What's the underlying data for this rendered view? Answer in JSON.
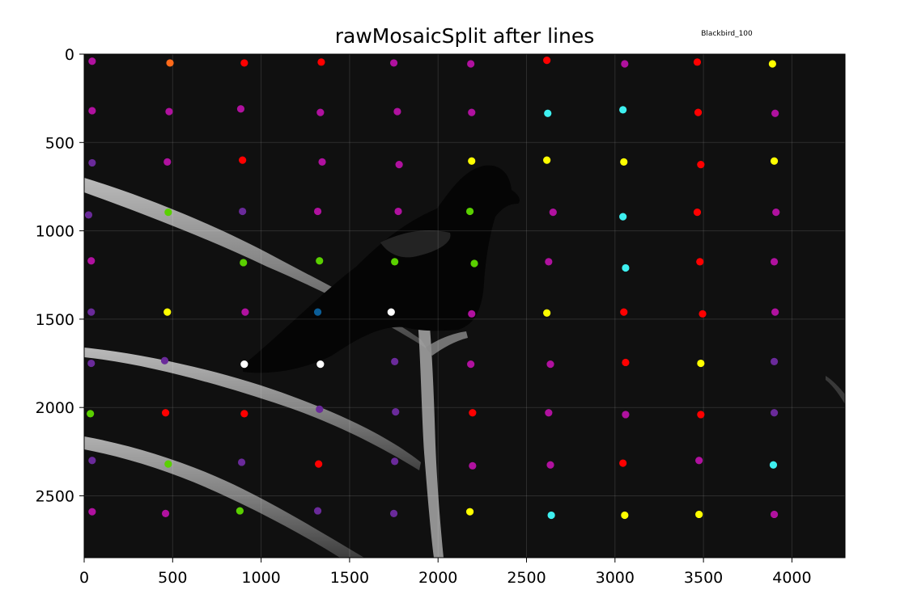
{
  "chart_data": {
    "type": "scatter",
    "title": "rawMosaicSplit after lines",
    "corner_label": "Blackbird_100",
    "xlabel": "",
    "ylabel": "",
    "xlim": [
      0,
      4300
    ],
    "ylim": [
      2850,
      0
    ],
    "y_inverted": true,
    "grid": true,
    "background": "grayscale photograph of a blackbird perched on bare branches",
    "x_ticks": [
      0,
      500,
      1000,
      1500,
      2000,
      2500,
      3000,
      3500,
      4000
    ],
    "y_ticks": [
      0,
      500,
      1000,
      1500,
      2000,
      2500
    ],
    "x_tick_labels": [
      "0",
      "500",
      "1000",
      "1500",
      "2000",
      "2500",
      "3000",
      "3500",
      "4000"
    ],
    "y_tick_labels": [
      "0",
      "500",
      "1000",
      "1500",
      "2000",
      "2500"
    ],
    "colors": {
      "magenta": "#b0119f",
      "purple": "#6a2a9a",
      "red": "#ff0000",
      "orange": "#ff6a1a",
      "yellow": "#ffff00",
      "cyan": "#3ef0f0",
      "green": "#5ad000",
      "white": "#ffffff",
      "blue": "#0b5e98"
    },
    "points": [
      {
        "x": 45,
        "y": 40,
        "c": "magenta"
      },
      {
        "x": 485,
        "y": 50,
        "c": "orange"
      },
      {
        "x": 905,
        "y": 50,
        "c": "red"
      },
      {
        "x": 1340,
        "y": 45,
        "c": "red"
      },
      {
        "x": 1750,
        "y": 50,
        "c": "magenta"
      },
      {
        "x": 2185,
        "y": 55,
        "c": "magenta"
      },
      {
        "x": 2615,
        "y": 35,
        "c": "red"
      },
      {
        "x": 3055,
        "y": 55,
        "c": "magenta"
      },
      {
        "x": 3465,
        "y": 45,
        "c": "red"
      },
      {
        "x": 3890,
        "y": 55,
        "c": "yellow"
      },
      {
        "x": 45,
        "y": 320,
        "c": "magenta"
      },
      {
        "x": 480,
        "y": 325,
        "c": "magenta"
      },
      {
        "x": 885,
        "y": 310,
        "c": "magenta"
      },
      {
        "x": 1335,
        "y": 330,
        "c": "magenta"
      },
      {
        "x": 1770,
        "y": 325,
        "c": "magenta"
      },
      {
        "x": 2190,
        "y": 330,
        "c": "magenta"
      },
      {
        "x": 2620,
        "y": 335,
        "c": "cyan"
      },
      {
        "x": 3045,
        "y": 315,
        "c": "cyan"
      },
      {
        "x": 3470,
        "y": 330,
        "c": "red"
      },
      {
        "x": 3905,
        "y": 335,
        "c": "magenta"
      },
      {
        "x": 45,
        "y": 615,
        "c": "purple"
      },
      {
        "x": 470,
        "y": 610,
        "c": "magenta"
      },
      {
        "x": 895,
        "y": 600,
        "c": "red"
      },
      {
        "x": 1345,
        "y": 610,
        "c": "magenta"
      },
      {
        "x": 1780,
        "y": 625,
        "c": "magenta"
      },
      {
        "x": 2190,
        "y": 605,
        "c": "yellow"
      },
      {
        "x": 2615,
        "y": 600,
        "c": "yellow"
      },
      {
        "x": 3050,
        "y": 610,
        "c": "yellow"
      },
      {
        "x": 3485,
        "y": 625,
        "c": "red"
      },
      {
        "x": 3900,
        "y": 605,
        "c": "yellow"
      },
      {
        "x": 25,
        "y": 910,
        "c": "purple"
      },
      {
        "x": 475,
        "y": 895,
        "c": "green"
      },
      {
        "x": 895,
        "y": 890,
        "c": "purple"
      },
      {
        "x": 1320,
        "y": 890,
        "c": "magenta"
      },
      {
        "x": 1775,
        "y": 890,
        "c": "magenta"
      },
      {
        "x": 2180,
        "y": 890,
        "c": "green"
      },
      {
        "x": 2650,
        "y": 895,
        "c": "magenta"
      },
      {
        "x": 3045,
        "y": 920,
        "c": "cyan"
      },
      {
        "x": 3465,
        "y": 895,
        "c": "red"
      },
      {
        "x": 3910,
        "y": 895,
        "c": "magenta"
      },
      {
        "x": 40,
        "y": 1170,
        "c": "magenta"
      },
      {
        "x": 900,
        "y": 1180,
        "c": "green"
      },
      {
        "x": 1330,
        "y": 1170,
        "c": "green"
      },
      {
        "x": 1755,
        "y": 1175,
        "c": "green"
      },
      {
        "x": 2205,
        "y": 1185,
        "c": "green"
      },
      {
        "x": 2625,
        "y": 1175,
        "c": "magenta"
      },
      {
        "x": 3060,
        "y": 1210,
        "c": "cyan"
      },
      {
        "x": 3480,
        "y": 1175,
        "c": "red"
      },
      {
        "x": 3900,
        "y": 1175,
        "c": "magenta"
      },
      {
        "x": 40,
        "y": 1460,
        "c": "purple"
      },
      {
        "x": 470,
        "y": 1460,
        "c": "yellow"
      },
      {
        "x": 910,
        "y": 1460,
        "c": "magenta"
      },
      {
        "x": 1320,
        "y": 1460,
        "c": "blue"
      },
      {
        "x": 1735,
        "y": 1460,
        "c": "white"
      },
      {
        "x": 2190,
        "y": 1470,
        "c": "magenta"
      },
      {
        "x": 2615,
        "y": 1465,
        "c": "yellow"
      },
      {
        "x": 3050,
        "y": 1460,
        "c": "red"
      },
      {
        "x": 3495,
        "y": 1470,
        "c": "red"
      },
      {
        "x": 3905,
        "y": 1460,
        "c": "magenta"
      },
      {
        "x": 40,
        "y": 1750,
        "c": "purple"
      },
      {
        "x": 455,
        "y": 1735,
        "c": "purple"
      },
      {
        "x": 905,
        "y": 1755,
        "c": "white"
      },
      {
        "x": 1335,
        "y": 1755,
        "c": "white"
      },
      {
        "x": 1755,
        "y": 1740,
        "c": "purple"
      },
      {
        "x": 2185,
        "y": 1755,
        "c": "magenta"
      },
      {
        "x": 2635,
        "y": 1755,
        "c": "magenta"
      },
      {
        "x": 3060,
        "y": 1745,
        "c": "red"
      },
      {
        "x": 3485,
        "y": 1750,
        "c": "yellow"
      },
      {
        "x": 3900,
        "y": 1740,
        "c": "purple"
      },
      {
        "x": 35,
        "y": 2035,
        "c": "green"
      },
      {
        "x": 460,
        "y": 2030,
        "c": "red"
      },
      {
        "x": 905,
        "y": 2035,
        "c": "red"
      },
      {
        "x": 1330,
        "y": 2010,
        "c": "purple"
      },
      {
        "x": 1760,
        "y": 2025,
        "c": "purple"
      },
      {
        "x": 2195,
        "y": 2030,
        "c": "red"
      },
      {
        "x": 2625,
        "y": 2030,
        "c": "magenta"
      },
      {
        "x": 3060,
        "y": 2040,
        "c": "magenta"
      },
      {
        "x": 3485,
        "y": 2040,
        "c": "red"
      },
      {
        "x": 3900,
        "y": 2030,
        "c": "purple"
      },
      {
        "x": 45,
        "y": 2300,
        "c": "purple"
      },
      {
        "x": 475,
        "y": 2320,
        "c": "green"
      },
      {
        "x": 890,
        "y": 2310,
        "c": "purple"
      },
      {
        "x": 1325,
        "y": 2320,
        "c": "red"
      },
      {
        "x": 1755,
        "y": 2305,
        "c": "purple"
      },
      {
        "x": 2195,
        "y": 2330,
        "c": "magenta"
      },
      {
        "x": 2635,
        "y": 2325,
        "c": "magenta"
      },
      {
        "x": 3045,
        "y": 2315,
        "c": "red"
      },
      {
        "x": 3475,
        "y": 2300,
        "c": "magenta"
      },
      {
        "x": 3895,
        "y": 2325,
        "c": "cyan"
      },
      {
        "x": 45,
        "y": 2590,
        "c": "magenta"
      },
      {
        "x": 460,
        "y": 2600,
        "c": "magenta"
      },
      {
        "x": 880,
        "y": 2585,
        "c": "green"
      },
      {
        "x": 1320,
        "y": 2585,
        "c": "purple"
      },
      {
        "x": 1750,
        "y": 2600,
        "c": "purple"
      },
      {
        "x": 2180,
        "y": 2590,
        "c": "yellow"
      },
      {
        "x": 2640,
        "y": 2610,
        "c": "cyan"
      },
      {
        "x": 3055,
        "y": 2610,
        "c": "yellow"
      },
      {
        "x": 3475,
        "y": 2605,
        "c": "yellow"
      },
      {
        "x": 3900,
        "y": 2605,
        "c": "magenta"
      }
    ]
  }
}
